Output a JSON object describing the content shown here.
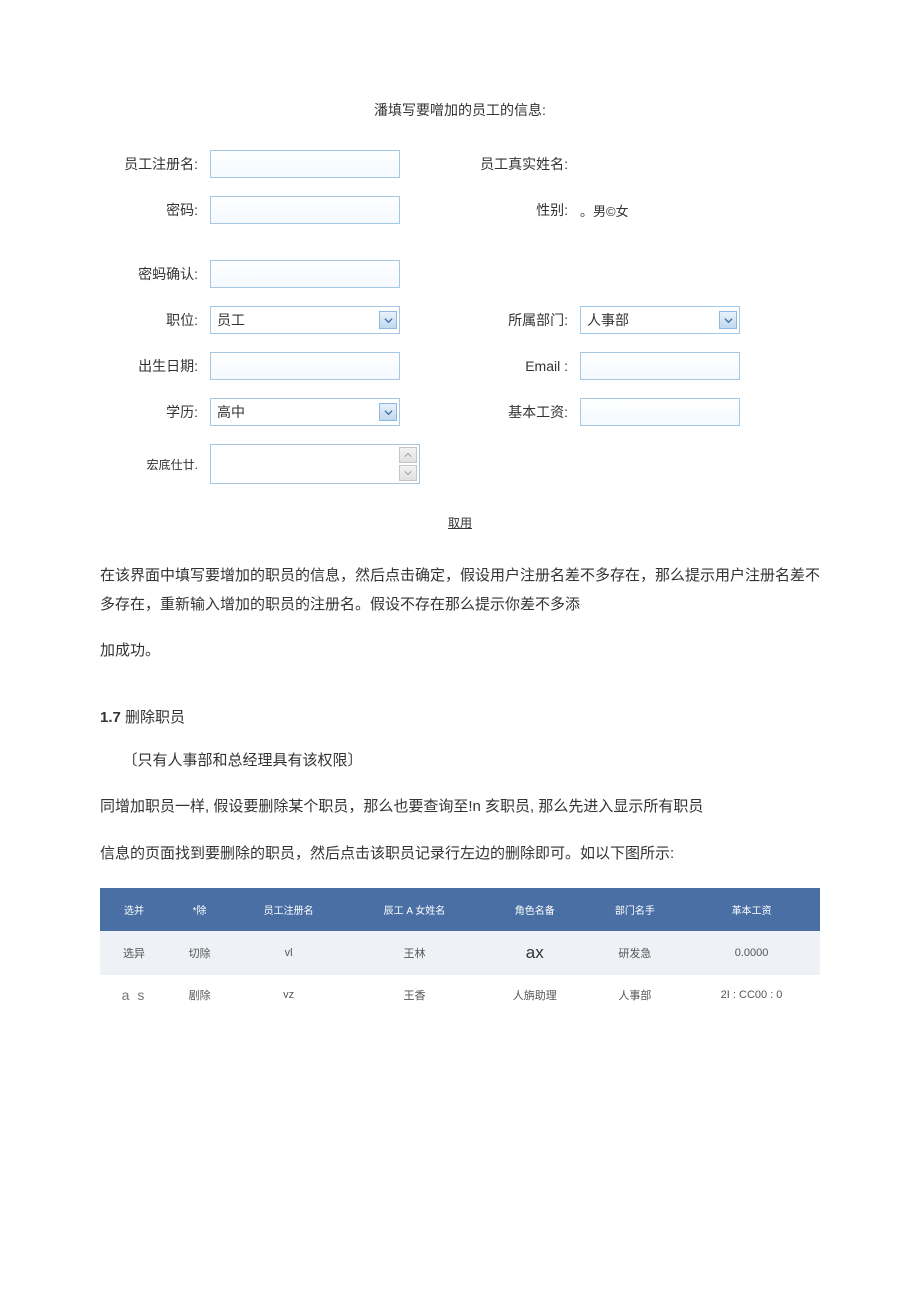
{
  "form": {
    "title": "潘填写要噌加的员工的信息:",
    "labels": {
      "regName": "员工注册名:",
      "realName": "员工真实姓名:",
      "password": "密码:",
      "gender": "性别:",
      "pwdConfirm": "密蚂确认:",
      "position": "职位:",
      "department": "所属部门:",
      "birthDate": "出生日期:",
      "email": "Email :",
      "education": "学历:",
      "baseSalary": "基本工资:",
      "address": "宏底仕廿."
    },
    "values": {
      "position": "员工",
      "department": "人事部",
      "education": "高中"
    },
    "genderOptions": {
      "prefix": "。",
      "male": "男",
      "sep": "©",
      "female": "女"
    },
    "cancel": "取用"
  },
  "body": {
    "p1": "在该界面中填写要增加的职员的信息，然后点击确定，假设用户注册名差不多存在，那么提示用户注册名差不多存在，重新输入增加的职员的注册名。假设不存在那么提示你差不多添",
    "p2": "加成功。",
    "sec_num": "1.7",
    "sec_title": " 删除职员",
    "sec_note": "〔只有人事部和总经理具有该权限〕",
    "p3": "同增加职员一样, 假设要删除某个职员，那么也要查询至!n 亥职员, 那么先进入显示所有职员",
    "p4": "信息的页面找到要删除的职员，然后点击该职员记录行左边的删除即可。如以下图所示:"
  },
  "table": {
    "style": {
      "headerBg": "#4a6fa5",
      "row1Bg": "#eef2f6",
      "row2Bg": "#ffffff"
    },
    "headers": [
      "选并",
      "*除",
      "员工注册名",
      "辰工 A 女姓名",
      "角色名备",
      "部门名手",
      "革本工资"
    ],
    "rows": [
      {
        "cells": [
          "选异",
          "切除",
          "vl",
          "王林",
          "ax",
          "研发急",
          "0.0000"
        ],
        "roleClass": "ax"
      },
      {
        "cells": [
          "a s",
          "剧除",
          "vz",
          "王香",
          "人旃助理",
          "人事部",
          "2I : CC00 : 0"
        ],
        "col0Class": "as"
      }
    ]
  }
}
